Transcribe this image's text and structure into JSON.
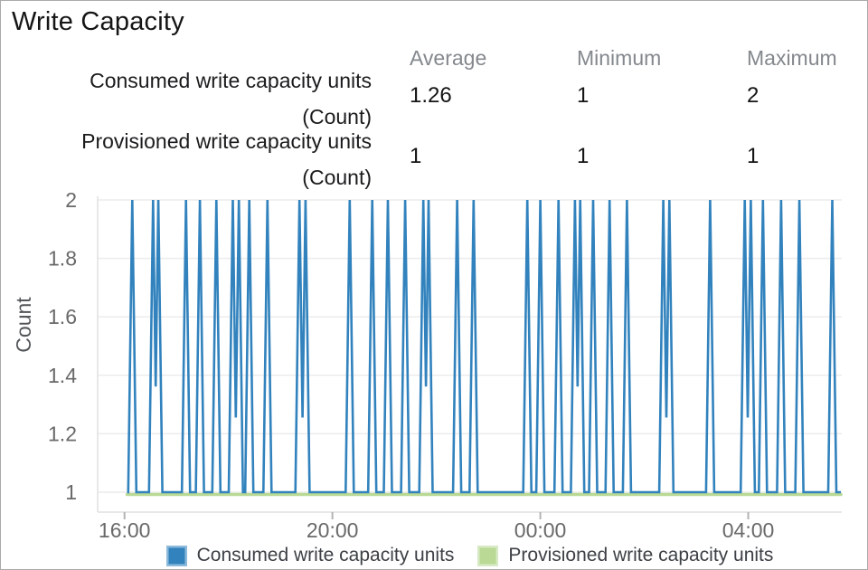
{
  "title": "Write Capacity",
  "summary_table": {
    "columns": [
      "Average",
      "Minimum",
      "Maximum"
    ],
    "rows": [
      {
        "label": "Consumed write capacity units",
        "unit": "(Count)",
        "average": "1.26",
        "minimum": "1",
        "maximum": "2"
      },
      {
        "label": "Provisioned write capacity units",
        "unit": "(Count)",
        "average": "1",
        "minimum": "1",
        "maximum": "1"
      }
    ]
  },
  "chart_data": {
    "type": "line",
    "title": "Write Capacity",
    "xlabel": "",
    "ylabel": "Count",
    "ylim": [
      1,
      2
    ],
    "yticks": [
      1,
      1.2,
      1.4,
      1.6,
      1.8,
      2
    ],
    "grid": true,
    "legend_position": "bottom",
    "x_axis": {
      "total_minutes": 859,
      "ticks": [
        {
          "minute": 31,
          "label": "16:00"
        },
        {
          "minute": 271,
          "label": "20:00"
        },
        {
          "minute": 511,
          "label": "00:00"
        },
        {
          "minute": 751,
          "label": "04:00"
        }
      ]
    },
    "series": [
      {
        "name": "Consumed write capacity units",
        "color": "#3182bd",
        "type": "spikes",
        "baseline_value": 1,
        "spike_value": 2,
        "start_minute": 34,
        "end_minute": 858,
        "spike_minutes": [
          40,
          64,
          70,
          102,
          118,
          137,
          156,
          163,
          175,
          196,
          233,
          240,
          291,
          317,
          335,
          355,
          376,
          382,
          415,
          434,
          496,
          511,
          532,
          551,
          557,
          572,
          591,
          611,
          653,
          660,
          707,
          747,
          754,
          768,
          789,
          810,
          848
        ],
        "stats": {
          "average": 1.26,
          "minimum": 1,
          "maximum": 2
        }
      },
      {
        "name": "Provisioned write capacity units",
        "color": "#b9d995",
        "type": "constant",
        "value": 1,
        "start_minute": 34,
        "end_minute": 858,
        "stats": {
          "average": 1,
          "minimum": 1,
          "maximum": 1
        }
      }
    ],
    "colors": {
      "grid": "#ececec",
      "axis": "#e0e0e0",
      "tick_mark": "#b3b3b3",
      "tick_text": "#696969",
      "axis_label": "#54575a"
    }
  }
}
